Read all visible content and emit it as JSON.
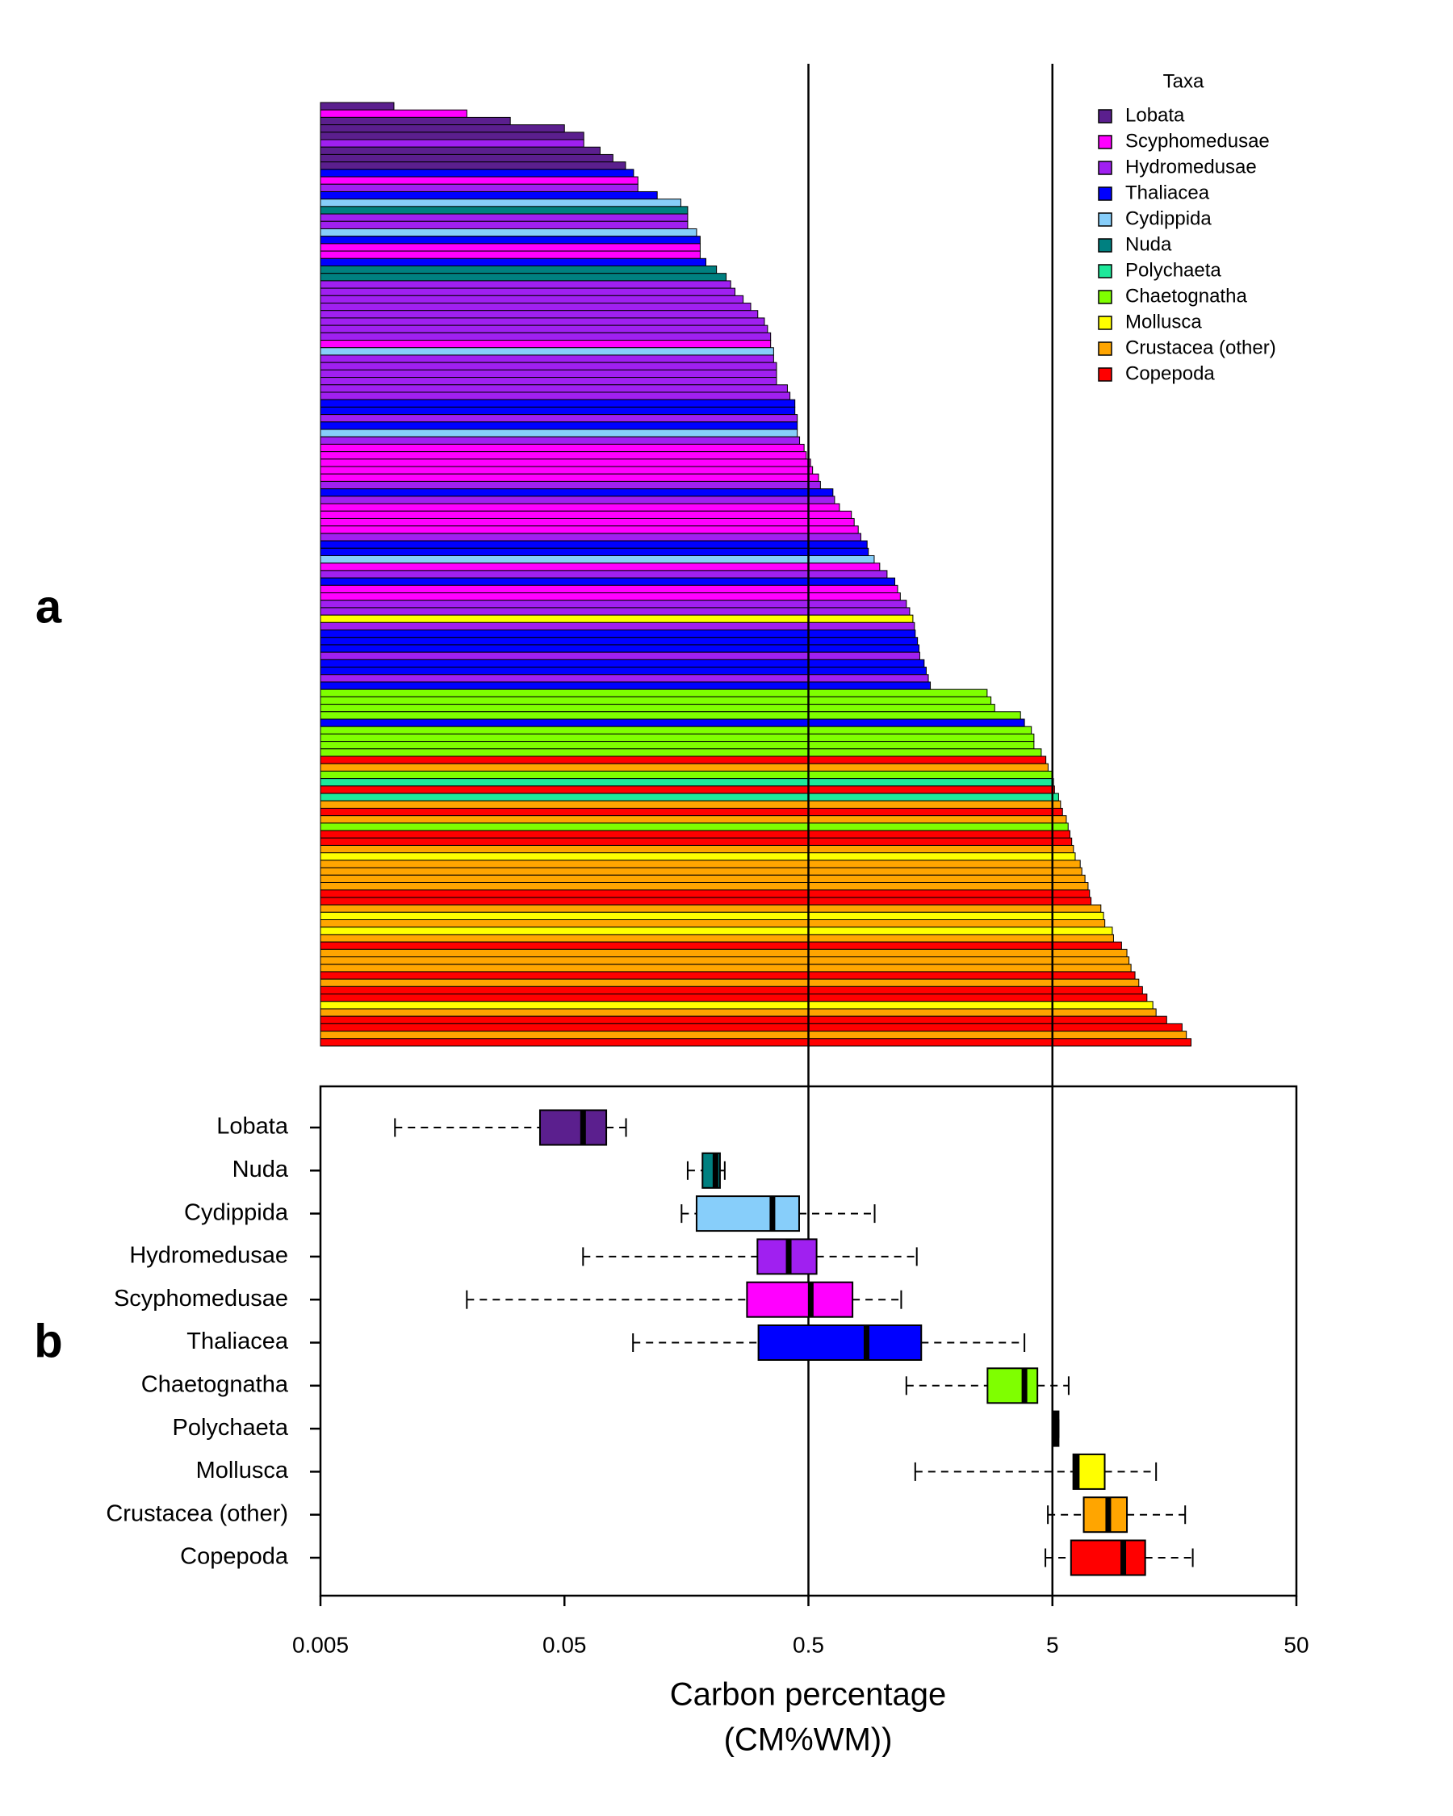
{
  "chart_data": [
    {
      "type": "bar",
      "panel_label": "a",
      "orientation": "horizontal",
      "legend": {
        "title": "Taxa",
        "position": "top-right"
      },
      "taxa": [
        {
          "name": "Lobata",
          "color": "#5b1f8e"
        },
        {
          "name": "Scyphomedusae",
          "color": "#ff00ff"
        },
        {
          "name": "Hydromedusae",
          "color": "#a020f0"
        },
        {
          "name": "Thaliacea",
          "color": "#0000ff"
        },
        {
          "name": "Cydippida",
          "color": "#87cefa"
        },
        {
          "name": "Nuda",
          "color": "#008080"
        },
        {
          "name": "Polychaeta",
          "color": "#1ee89a"
        },
        {
          "name": "Chaetognatha",
          "color": "#7fff00"
        },
        {
          "name": "Mollusca",
          "color": "#ffff00"
        },
        {
          "name": "Crustacea (other)",
          "color": "#ffa500"
        },
        {
          "name": "Copepoda",
          "color": "#ff0000"
        }
      ],
      "values": [
        0.01,
        0.0199,
        0.03,
        0.05,
        0.06,
        0.06,
        0.07,
        0.079,
        0.089,
        0.096,
        0.1,
        0.1,
        0.12,
        0.15,
        0.16,
        0.16,
        0.16,
        0.174,
        0.18,
        0.18,
        0.18,
        0.19,
        0.21,
        0.23,
        0.24,
        0.25,
        0.27,
        0.29,
        0.31,
        0.33,
        0.34,
        0.35,
        0.35,
        0.36,
        0.36,
        0.37,
        0.37,
        0.37,
        0.41,
        0.42,
        0.44,
        0.44,
        0.45,
        0.45,
        0.45,
        0.46,
        0.48,
        0.49,
        0.51,
        0.52,
        0.55,
        0.56,
        0.63,
        0.64,
        0.67,
        0.75,
        0.77,
        0.8,
        0.82,
        0.87,
        0.88,
        0.93,
        0.98,
        1.05,
        1.13,
        1.16,
        1.19,
        1.26,
        1.3,
        1.34,
        1.36,
        1.37,
        1.4,
        1.42,
        1.43,
        1.49,
        1.52,
        1.55,
        1.58,
        2.7,
        2.8,
        2.9,
        3.7,
        3.84,
        4.1,
        4.2,
        4.2,
        4.5,
        4.7,
        4.8,
        5.0,
        5.05,
        5.1,
        5.3,
        5.4,
        5.5,
        5.7,
        5.8,
        5.9,
        6.0,
        6.1,
        6.2,
        6.5,
        6.6,
        6.8,
        7.0,
        7.1,
        7.2,
        7.9,
        8.1,
        8.2,
        8.8,
        8.9,
        9.6,
        10.1,
        10.3,
        10.5,
        10.9,
        11.3,
        11.7,
        12.2,
        12.9,
        13.3,
        14.7,
        17.0,
        17.7,
        18.5
      ],
      "taxon": [
        "Lobata",
        "Scyphomedusae",
        "Lobata",
        "Lobata",
        "Lobata",
        "Hydromedusae",
        "Lobata",
        "Lobata",
        "Lobata",
        "Thaliacea",
        "Scyphomedusae",
        "Hydromedusae",
        "Thaliacea",
        "Cydippida",
        "Nuda",
        "Hydromedusae",
        "Hydromedusae",
        "Cydippida",
        "Thaliacea",
        "Scyphomedusae",
        "Scyphomedusae",
        "Thaliacea",
        "Nuda",
        "Nuda",
        "Hydromedusae",
        "Hydromedusae",
        "Hydromedusae",
        "Hydromedusae",
        "Hydromedusae",
        "Hydromedusae",
        "Hydromedusae",
        "Hydromedusae",
        "Scyphomedusae",
        "Cydippida",
        "Hydromedusae",
        "Hydromedusae",
        "Hydromedusae",
        "Hydromedusae",
        "Hydromedusae",
        "Hydromedusae",
        "Thaliacea",
        "Thaliacea",
        "Hydromedusae",
        "Thaliacea",
        "Cydippida",
        "Hydromedusae",
        "Scyphomedusae",
        "Scyphomedusae",
        "Scyphomedusae",
        "Scyphomedusae",
        "Scyphomedusae",
        "Hydromedusae",
        "Thaliacea",
        "Hydromedusae",
        "Scyphomedusae",
        "Scyphomedusae",
        "Scyphomedusae",
        "Scyphomedusae",
        "Hydromedusae",
        "Thaliacea",
        "Thaliacea",
        "Cydippida",
        "Scyphomedusae",
        "Hydromedusae",
        "Thaliacea",
        "Scyphomedusae",
        "Scyphomedusae",
        "Hydromedusae",
        "Hydromedusae",
        "Mollusca",
        "Hydromedusae",
        "Thaliacea",
        "Thaliacea",
        "Thaliacea",
        "Hydromedusae",
        "Thaliacea",
        "Thaliacea",
        "Hydromedusae",
        "Thaliacea",
        "Chaetognatha",
        "Chaetognatha",
        "Chaetognatha",
        "Chaetognatha",
        "Thaliacea",
        "Chaetognatha",
        "Chaetognatha",
        "Chaetognatha",
        "Chaetognatha",
        "Copepoda",
        "Crustacea (other)",
        "Chaetognatha",
        "Polychaeta",
        "Copepoda",
        "Polychaeta",
        "Crustacea (other)",
        "Copepoda",
        "Crustacea (other)",
        "Chaetognatha",
        "Copepoda",
        "Copepoda",
        "Crustacea (other)",
        "Mollusca",
        "Crustacea (other)",
        "Crustacea (other)",
        "Crustacea (other)",
        "Crustacea (other)",
        "Copepoda",
        "Copepoda",
        "Crustacea (other)",
        "Mollusca",
        "Crustacea (other)",
        "Mollusca",
        "Crustacea (other)",
        "Copepoda",
        "Crustacea (other)",
        "Crustacea (other)",
        "Crustacea (other)",
        "Copepoda",
        "Crustacea (other)",
        "Copepoda",
        "Copepoda",
        "Mollusca",
        "Crustacea (other)",
        "Copepoda",
        "Copepoda",
        "Crustacea (other)",
        "Copepoda"
      ]
    },
    {
      "type": "box",
      "panel_label": "b",
      "categories": [
        "Lobata",
        "Nuda",
        "Cydippida",
        "Hydromedusae",
        "Scyphomedusae",
        "Thaliacea",
        "Chaetognatha",
        "Polychaeta",
        "Mollusca",
        "Crustacea (other)",
        "Copepoda"
      ],
      "colors": [
        "#5b1f8e",
        "#008080",
        "#87cefa",
        "#a020f0",
        "#ff00ff",
        "#0000ff",
        "#7fff00",
        "#1ee89a",
        "#ffff00",
        "#ffa500",
        "#ff0000"
      ],
      "boxes": [
        {
          "low": 0.0101,
          "q1": 0.0397,
          "median": 0.0596,
          "q3": 0.0742,
          "high": 0.0894
        },
        {
          "low": 0.16,
          "q1": 0.184,
          "median": 0.208,
          "q3": 0.217,
          "high": 0.227
        },
        {
          "low": 0.151,
          "q1": 0.174,
          "median": 0.356,
          "q3": 0.458,
          "high": 0.934
        },
        {
          "low": 0.0596,
          "q1": 0.309,
          "median": 0.415,
          "q3": 0.54,
          "high": 1.39
        },
        {
          "low": 0.0199,
          "q1": 0.28,
          "median": 0.511,
          "q3": 0.758,
          "high": 1.2
        },
        {
          "low": 0.0955,
          "q1": 0.312,
          "median": 0.865,
          "q3": 1.45,
          "high": 3.84
        },
        {
          "low": 1.26,
          "q1": 2.71,
          "median": 3.84,
          "q3": 4.34,
          "high": 5.83
        },
        {
          "low": 5.05,
          "q1": 5.05,
          "median": 5.17,
          "q3": 5.3,
          "high": 5.3
        },
        {
          "low": 1.37,
          "q1": 6.09,
          "median": 6.29,
          "q3": 8.19,
          "high": 13.3
        },
        {
          "low": 4.79,
          "q1": 6.72,
          "median": 8.47,
          "q3": 10.1,
          "high": 17.5
        },
        {
          "low": 4.68,
          "q1": 5.96,
          "median": 9.76,
          "q3": 12.0,
          "high": 18.8
        }
      ],
      "xscale": "log",
      "xlim": [
        0.005,
        50
      ],
      "xticks": [
        0.005,
        0.05,
        0.5,
        5,
        50
      ],
      "vlines": [
        0.5,
        5
      ],
      "xlabel": [
        "Carbon percentage",
        "(CM%WM))"
      ]
    }
  ]
}
